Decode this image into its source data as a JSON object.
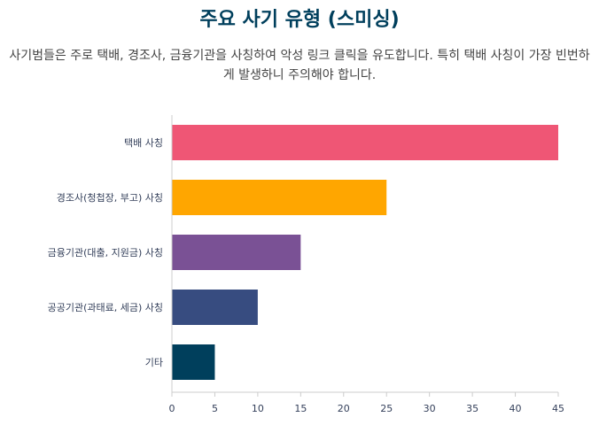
{
  "chart_data": {
    "type": "bar",
    "orientation": "horizontal",
    "title": "주요 사기 유형 (스미싱)",
    "subtitle": "사기범들은 주로 택배, 경조사, 금융기관을 사칭하여 악성 링크 클릭을 유도합니다. 특히 택배 사칭이 가장 빈번하게 발생하니 주의해야 합니다.",
    "categories": [
      "택배 사칭",
      "경조사(청첩장, 부고) 사칭",
      "금융기관(대출, 지원금) 사칭",
      "공공기관(과태료, 세금) 사칭",
      "기타"
    ],
    "values": [
      45,
      25,
      15,
      10,
      5
    ],
    "colors": [
      "#ef5675",
      "#ffa600",
      "#7a5195",
      "#374c80",
      "#003f5c"
    ],
    "xlim": [
      0,
      45
    ],
    "xticks": [
      0,
      5,
      10,
      15,
      20,
      25,
      30,
      35,
      40,
      45
    ],
    "xlabel": "",
    "ylabel": ""
  }
}
